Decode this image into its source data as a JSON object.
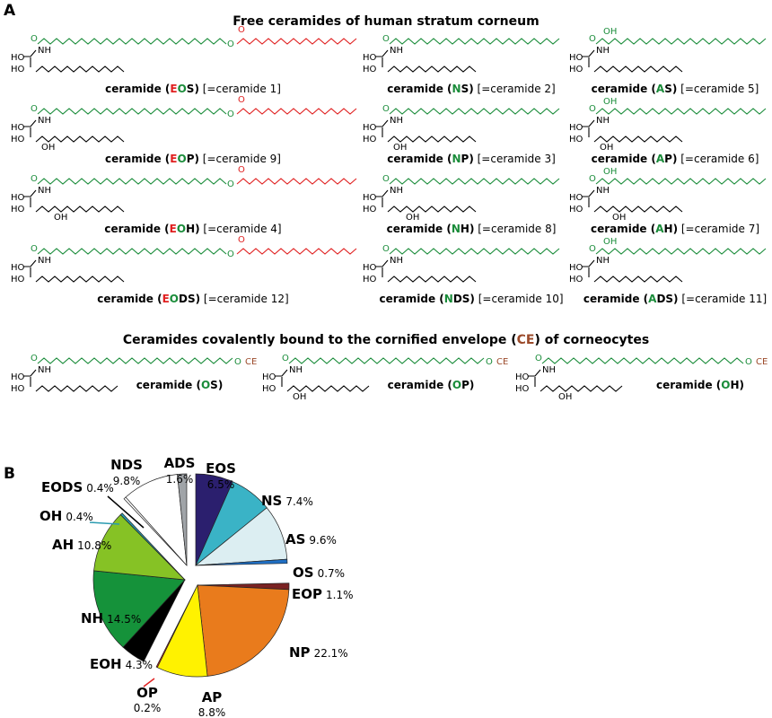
{
  "panel_a": "A",
  "panel_b": "B",
  "title_free": "Free ceramides of human stratum corneum",
  "title_bound": {
    "before": "Ceramides covalently bound to the cornified envelope (",
    "ce": "CE",
    "after": ") of corneocytes"
  },
  "colors": {
    "ester": "#e02020",
    "fatty": "#1a8c3a",
    "base": "#000000",
    "ce": "#9b4a2a"
  },
  "atoms": {
    "O": "O",
    "NH": "NH",
    "HO": "HO",
    "OH": "OH",
    "CE": "CE"
  },
  "structures": [
    {
      "name": "EOS",
      "prefix": "ceramide (",
      "code": [
        {
          "t": "E",
          "c": "#e02020"
        },
        {
          "t": "O",
          "c": "#1a8c3a"
        },
        {
          "t": "S",
          "c": "#000"
        }
      ],
      "suffix": ")",
      "alias": " [=ceramide 1]"
    },
    {
      "name": "NS",
      "prefix": "ceramide (",
      "code": [
        {
          "t": "N",
          "c": "#1a8c3a"
        },
        {
          "t": "S",
          "c": "#000"
        }
      ],
      "suffix": ")",
      "alias": " [=ceramide 2]"
    },
    {
      "name": "AS",
      "prefix": "ceramide (",
      "code": [
        {
          "t": "A",
          "c": "#1a8c3a"
        },
        {
          "t": "S",
          "c": "#000"
        }
      ],
      "suffix": ")",
      "alias": " [=ceramide 5]"
    },
    {
      "name": "EOP",
      "prefix": "ceramide (",
      "code": [
        {
          "t": "E",
          "c": "#e02020"
        },
        {
          "t": "O",
          "c": "#1a8c3a"
        },
        {
          "t": "P",
          "c": "#000"
        }
      ],
      "suffix": ")",
      "alias": " [=ceramide 9]"
    },
    {
      "name": "NP",
      "prefix": "ceramide (",
      "code": [
        {
          "t": "N",
          "c": "#1a8c3a"
        },
        {
          "t": "P",
          "c": "#000"
        }
      ],
      "suffix": ")",
      "alias": " [=ceramide 3]"
    },
    {
      "name": "AP",
      "prefix": "ceramide (",
      "code": [
        {
          "t": "A",
          "c": "#1a8c3a"
        },
        {
          "t": "P",
          "c": "#000"
        }
      ],
      "suffix": ")",
      "alias": " [=ceramide 6]"
    },
    {
      "name": "EOH",
      "prefix": "ceramide (",
      "code": [
        {
          "t": "E",
          "c": "#e02020"
        },
        {
          "t": "O",
          "c": "#1a8c3a"
        },
        {
          "t": "H",
          "c": "#000"
        }
      ],
      "suffix": ")",
      "alias": " [=ceramide 4]"
    },
    {
      "name": "NH",
      "prefix": "ceramide (",
      "code": [
        {
          "t": "N",
          "c": "#1a8c3a"
        },
        {
          "t": "H",
          "c": "#000"
        }
      ],
      "suffix": ")",
      "alias": " [=ceramide 8]"
    },
    {
      "name": "AH",
      "prefix": "ceramide (",
      "code": [
        {
          "t": "A",
          "c": "#1a8c3a"
        },
        {
          "t": "H",
          "c": "#000"
        }
      ],
      "suffix": ")",
      "alias": " [=ceramide 7]"
    },
    {
      "name": "EODS",
      "prefix": "ceramide (",
      "code": [
        {
          "t": "E",
          "c": "#e02020"
        },
        {
          "t": "O",
          "c": "#1a8c3a"
        },
        {
          "t": "DS",
          "c": "#000"
        }
      ],
      "suffix": ")",
      "alias": " [=ceramide 12]"
    },
    {
      "name": "NDS",
      "prefix": "ceramide (",
      "code": [
        {
          "t": "N",
          "c": "#1a8c3a"
        },
        {
          "t": "DS",
          "c": "#000"
        }
      ],
      "suffix": ")",
      "alias": " [=ceramide 10]"
    },
    {
      "name": "ADS",
      "prefix": "ceramide (",
      "code": [
        {
          "t": "A",
          "c": "#1a8c3a"
        },
        {
          "t": "DS",
          "c": "#000"
        }
      ],
      "suffix": ")",
      "alias": " [=ceramide 11]"
    }
  ],
  "bound_structures": [
    {
      "name": "OS",
      "prefix": "ceramide (",
      "code": [
        {
          "t": "O",
          "c": "#1a8c3a"
        },
        {
          "t": "S",
          "c": "#000"
        }
      ],
      "suffix": ")"
    },
    {
      "name": "OP",
      "prefix": "ceramide (",
      "code": [
        {
          "t": "O",
          "c": "#1a8c3a"
        },
        {
          "t": "P",
          "c": "#000"
        }
      ],
      "suffix": ")"
    },
    {
      "name": "OH",
      "prefix": "ceramide (",
      "code": [
        {
          "t": "O",
          "c": "#1a8c3a"
        },
        {
          "t": "H",
          "c": "#000"
        }
      ],
      "suffix": ")"
    }
  ],
  "chart_data": {
    "type": "pie",
    "unit": "%",
    "order": "clockwise from 12 o'clock, exploded by ceramide group",
    "slices": [
      {
        "label": "EOS",
        "value": 6.5,
        "display": "6.5%",
        "color": "#2b1f6e",
        "group": "S"
      },
      {
        "label": "NS",
        "value": 7.4,
        "display": "7.4%",
        "color": "#3ab3c6",
        "group": "S"
      },
      {
        "label": "AS",
        "value": 9.6,
        "display": "9.6%",
        "color": "#dceef2",
        "group": "S"
      },
      {
        "label": "OS",
        "value": 0.7,
        "display": "0.7%",
        "color": "#1f6fc4",
        "group": "S"
      },
      {
        "label": "EOP",
        "value": 1.1,
        "display": "1.1%",
        "color": "#7a2222",
        "group": "P"
      },
      {
        "label": "NP",
        "value": 22.1,
        "display": "22.1%",
        "color": "#e97b1c",
        "group": "P"
      },
      {
        "label": "AP",
        "value": 8.8,
        "display": "8.8%",
        "color": "#fff200",
        "group": "P"
      },
      {
        "label": "OP",
        "value": 0.2,
        "display": "0.2%",
        "color": "#e02020",
        "group": "P"
      },
      {
        "label": "EOH",
        "value": 4.3,
        "display": "4.3%",
        "color": "#000000",
        "group": "H"
      },
      {
        "label": "NH",
        "value": 14.5,
        "display": "14.5%",
        "color": "#15923a",
        "group": "H"
      },
      {
        "label": "AH",
        "value": 10.8,
        "display": "10.8%",
        "color": "#86c225",
        "group": "H"
      },
      {
        "label": "OH",
        "value": 0.4,
        "display": "0.4%",
        "color": "#2a9bb0",
        "group": "H"
      },
      {
        "label": "EODS",
        "value": 0.4,
        "display": "0.4%",
        "color": "#ffffff",
        "group": "DS"
      },
      {
        "label": "NDS",
        "value": 9.8,
        "display": "9.8%",
        "color": "#ffffff",
        "group": "DS"
      },
      {
        "label": "ADS",
        "value": 1.6,
        "display": "1.6%",
        "color": "#a0a4a8",
        "group": "DS"
      }
    ]
  }
}
